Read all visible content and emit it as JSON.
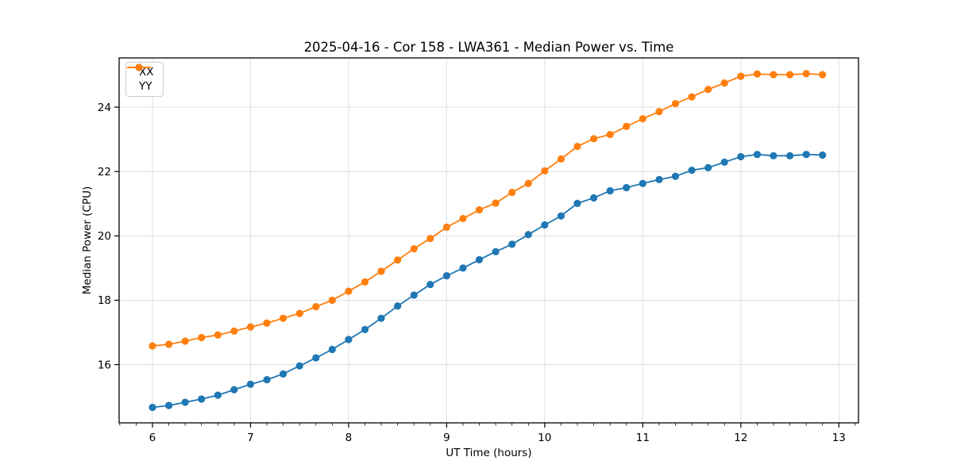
{
  "figure": {
    "background": "#ffffff",
    "text_color": "#000000",
    "spine_color": "#000000"
  },
  "chart_data": {
    "type": "line",
    "title": "2025-04-16 - Cor 158 - LWA361 - Median Power vs. Time",
    "xlabel": "UT Time (hours)",
    "ylabel": "Median Power (CPU)",
    "xlim": [
      5.66,
      13.2
    ],
    "ylim": [
      14.19,
      25.53
    ],
    "xticks": [
      6,
      7,
      8,
      9,
      10,
      11,
      12,
      13
    ],
    "yticks": [
      16,
      18,
      20,
      22,
      24
    ],
    "x_minor_step": 0.1666667,
    "grid": true,
    "grid_color": "#e0e0e0",
    "legend_position": "upper left",
    "x": [
      6.0,
      6.167,
      6.333,
      6.5,
      6.667,
      6.833,
      7.0,
      7.167,
      7.333,
      7.5,
      7.667,
      7.833,
      8.0,
      8.167,
      8.333,
      8.5,
      8.667,
      8.833,
      9.0,
      9.167,
      9.333,
      9.5,
      9.667,
      9.833,
      10.0,
      10.167,
      10.333,
      10.5,
      10.667,
      10.833,
      11.0,
      11.167,
      11.333,
      11.5,
      11.667,
      11.833,
      12.0,
      12.167,
      12.333,
      12.5,
      12.667,
      12.833
    ],
    "series": [
      {
        "name": "XX",
        "color": "#1f77b4",
        "marker": "circle",
        "values": [
          14.67,
          14.73,
          14.83,
          14.93,
          15.05,
          15.22,
          15.39,
          15.53,
          15.71,
          15.96,
          16.21,
          16.47,
          16.78,
          17.09,
          17.44,
          17.82,
          18.16,
          18.49,
          18.76,
          19.0,
          19.26,
          19.51,
          19.74,
          20.04,
          20.34,
          20.62,
          21.01,
          21.18,
          21.4,
          21.5,
          21.63,
          21.75,
          21.85,
          22.04,
          22.12,
          22.29,
          22.46,
          22.53,
          22.49,
          22.49,
          22.53,
          22.51
        ]
      },
      {
        "name": "YY",
        "color": "#ff7f0e",
        "marker": "circle",
        "values": [
          16.58,
          16.63,
          16.73,
          16.84,
          16.92,
          17.04,
          17.17,
          17.29,
          17.44,
          17.59,
          17.8,
          18.0,
          18.28,
          18.57,
          18.9,
          19.25,
          19.6,
          19.92,
          20.27,
          20.54,
          20.81,
          21.02,
          21.35,
          21.63,
          22.02,
          22.39,
          22.78,
          23.02,
          23.15,
          23.4,
          23.64,
          23.86,
          24.11,
          24.32,
          24.55,
          24.75,
          24.96,
          25.03,
          25.01,
          25.01,
          25.04,
          25.01
        ]
      }
    ]
  }
}
